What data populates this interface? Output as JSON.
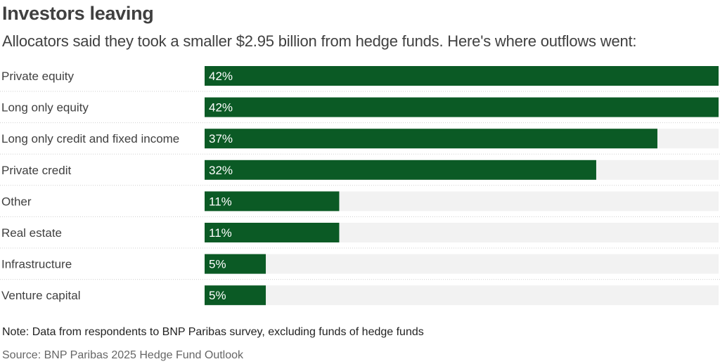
{
  "chart_data": {
    "type": "bar",
    "orientation": "horizontal",
    "title": "Investors leaving",
    "subtitle": "Allocators said they took a smaller $2.95 billion from hedge funds. Here's where outflows went:",
    "categories": [
      "Private equity",
      "Long only equity",
      "Long only credit and fixed income",
      "Private credit",
      "Other",
      "Real estate",
      "Infrastructure",
      "Venture capital"
    ],
    "values": [
      42,
      42,
      37,
      32,
      11,
      11,
      5,
      5
    ],
    "value_labels": [
      "42%",
      "42%",
      "37%",
      "32%",
      "11%",
      "11%",
      "5%",
      "5%"
    ],
    "xlim": [
      0,
      42
    ],
    "grid": false,
    "legend": "none",
    "bar_color": "#0b5a25",
    "track_color": "#f2f2f2",
    "note": "Note: Data from respondents to BNP Paribas survey, excluding funds of hedge funds",
    "source": "Source: BNP Paribas 2025 Hedge Fund Outlook"
  }
}
